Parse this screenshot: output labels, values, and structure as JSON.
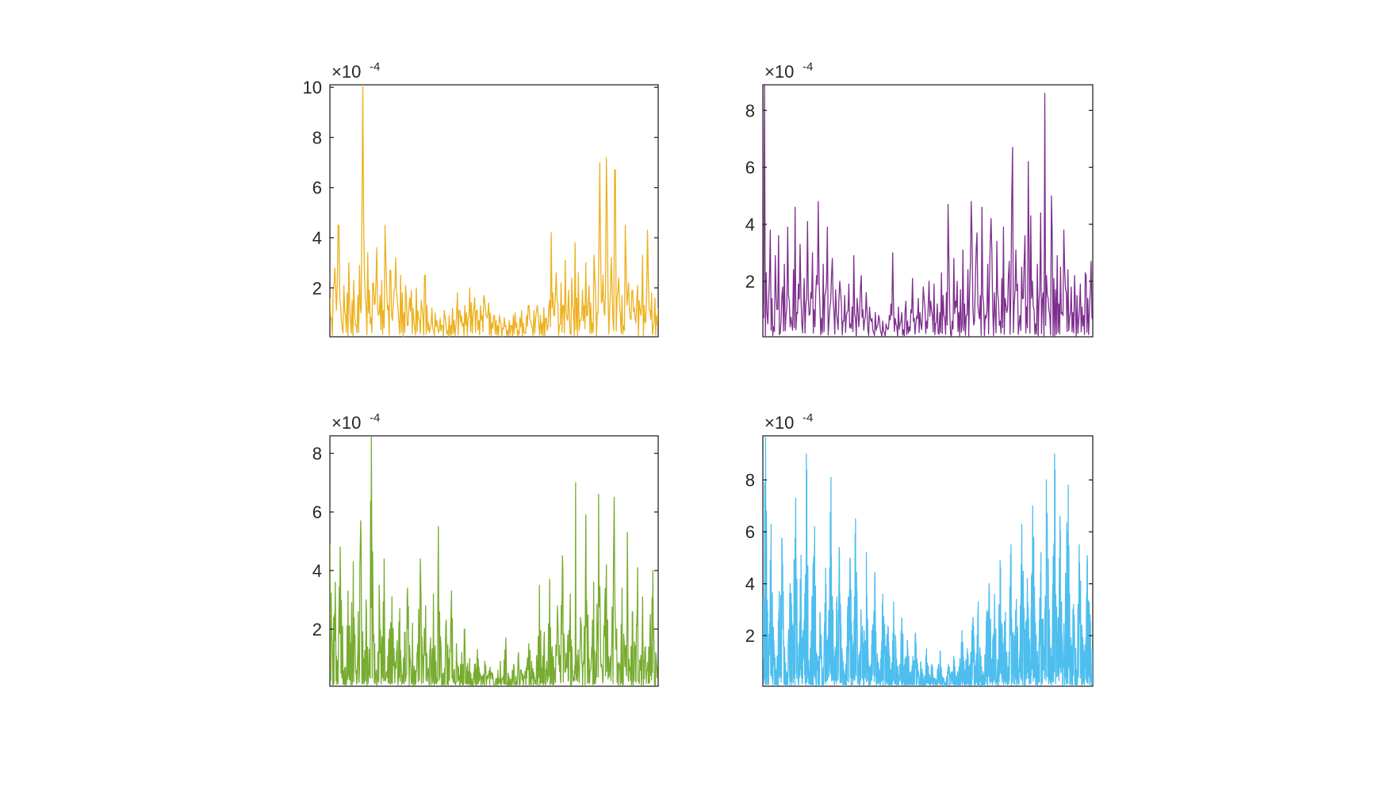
{
  "figure": {
    "background": "#ffffff",
    "axis_color": "#262626"
  },
  "chart_data": [
    {
      "type": "line",
      "title": "",
      "xlabel": "",
      "ylabel": "",
      "multiplier_base": "×10",
      "multiplier_exponent": "-4",
      "ylim": [
        0.05,
        10.1
      ],
      "yticks": [
        2,
        4,
        6,
        8,
        10
      ],
      "ytick_labels": [
        "2",
        "4",
        "6",
        "8",
        "10"
      ],
      "xticks_visible": false,
      "grid": false,
      "color": "#EDB120",
      "series": [
        {
          "x_count": 400,
          "values": [
            1.6,
            0.8,
            1.9,
            2.8,
            1.1,
            4.5,
            1.3,
            0.4,
            2.1,
            0.9,
            1.8,
            3.0,
            0.6,
            1.5,
            2.3,
            0.5,
            1.7,
            2.9,
            1.0,
            10.1,
            2.6,
            1.2,
            3.4,
            1.9,
            0.8,
            2.2,
            1.4,
            3.6,
            0.9,
            1.7,
            2.3,
            1.1,
            4.5,
            2.0,
            1.3,
            2.7,
            0.7,
            1.9,
            3.2,
            1.5,
            0.6,
            2.5,
            1.8,
            1.0,
            2.1,
            0.5,
            1.6,
            1.9,
            1.2,
            0.4,
            2.0,
            1.1,
            0.7,
            1.5,
            0.9,
            2.5,
            1.3,
            0.6,
            0.4,
            1.2,
            0.3,
            1.0,
            0.7,
            0.2,
            0.8,
            0.5,
            1.1,
            0.6,
            0.3,
            0.9,
            0.5,
            1.2,
            0.7,
            0.4,
            1.8,
            1.1,
            0.9,
            0.6,
            1.3,
            1.0,
            0.8,
            2.0,
            1.4,
            0.9,
            1.6,
            1.1,
            0.7,
            1.3,
            0.9,
            1.7,
            1.2,
            0.8,
            1.4,
            1.0,
            0.6,
            0.9,
            0.7,
            0.5,
            0.9,
            0.6,
            0.4,
            0.8,
            0.5,
            0.3,
            0.7,
            0.5,
            0.9,
            1.0,
            0.6,
            0.3,
            0.8,
            1.1,
            0.6,
            0.2,
            0.9,
            1.3,
            0.7,
            0.4,
            1.1,
            0.8,
            1.3,
            0.5,
            0.9,
            0.6,
            1.2,
            0.8,
            0.4,
            1.5,
            4.2,
            1.8,
            0.9,
            2.6,
            1.4,
            0.5,
            2.2,
            1.3,
            3.1,
            0.8,
            1.9,
            0.2,
            2.4,
            1.1,
            3.8,
            1.6,
            2.6,
            0.7,
            1.9,
            1.3,
            3.0,
            0.9,
            2.1,
            1.4,
            0.6,
            3.3,
            1.8,
            1.0,
            7.0,
            1.4,
            2.5,
            0.9,
            7.2,
            1.9,
            1.1,
            3.2,
            0.7,
            6.7,
            1.6,
            2.4,
            0.9,
            1.7,
            0.5,
            4.5,
            1.3,
            2.2,
            0.8,
            1.9,
            1.2,
            0.6,
            2.1,
            1.5,
            0.9,
            3.3,
            1.3,
            0.7,
            4.3,
            1.1,
            1.8,
            0.4,
            1.6,
            0.9,
            1.2
          ]
        }
      ]
    },
    {
      "type": "line",
      "title": "",
      "xlabel": "",
      "ylabel": "",
      "multiplier_base": "×10",
      "multiplier_exponent": "-4",
      "ylim": [
        0.05,
        8.9
      ],
      "yticks": [
        2,
        4,
        6,
        8
      ],
      "ytick_labels": [
        "2",
        "4",
        "6",
        "8"
      ],
      "xticks_visible": false,
      "grid": false,
      "color": "#7E2F8E",
      "series": [
        {
          "x_count": 400,
          "values": [
            1.2,
            8.9,
            2.3,
            0.5,
            3.8,
            1.4,
            0.4,
            2.9,
            1.0,
            3.6,
            0.6,
            1.8,
            2.6,
            0.8,
            3.9,
            1.3,
            0.5,
            2.4,
            4.6,
            0.9,
            1.9,
            3.3,
            0.6,
            2.1,
            1.2,
            4.1,
            0.8,
            1.6,
            3.0,
            0.4,
            2.2,
            4.8,
            1.1,
            0.7,
            2.6,
            1.5,
            3.9,
            0.6,
            1.3,
            2.8,
            0.9,
            1.7,
            0.3,
            2.0,
            1.2,
            0.6,
            1.5,
            0.8,
            1.9,
            0.5,
            1.1,
            2.9,
            0.7,
            1.4,
            0.4,
            2.2,
            1.0,
            0.6,
            1.6,
            0.3,
            1.1,
            0.7,
            0.2,
            0.9,
            0.4,
            0.8,
            0.3,
            0.6,
            0.2,
            0.5,
            0.3,
            0.8,
            1.2,
            3.0,
            0.7,
            0.4,
            1.1,
            0.5,
            0.9,
            0.3,
            1.3,
            0.6,
            0.4,
            1.0,
            2.1,
            0.7,
            0.5,
            1.4,
            0.9,
            0.3,
            1.8,
            1.1,
            0.6,
            2.0,
            1.3,
            0.8,
            1.9,
            0.5,
            1.2,
            0.9,
            2.3,
            1.5,
            0.7,
            1.6,
            4.7,
            1.0,
            0.6,
            2.8,
            1.3,
            2.0,
            0.9,
            1.7,
            3.1,
            1.2,
            0.8,
            2.4,
            1.6,
            4.8,
            1.1,
            2.0,
            3.7,
            0.9,
            1.5,
            4.6,
            1.2,
            0.7,
            2.6,
            1.9,
            4.2,
            1.0,
            1.6,
            3.4,
            1.3,
            0.6,
            2.1,
            3.9,
            1.4,
            0.9,
            2.7,
            1.6,
            6.7,
            1.2,
            3.1,
            1.9,
            0.8,
            2.5,
            1.4,
            3.6,
            1.1,
            6.2,
            4.3,
            2.0,
            1.0,
            0.5,
            2.6,
            1.3,
            4.4,
            1.6,
            8.6,
            2.2,
            1.4,
            0.8,
            5.0,
            2.1,
            1.7,
            2.9,
            1.2,
            2.5,
            0.9,
            3.8,
            1.6,
            2.4,
            0.7,
            1.8,
            0.9,
            2.2,
            1.5,
            0.6,
            1.9,
            1.1,
            0.8,
            2.3,
            1.4,
            1.0,
            2.7,
            0.6
          ]
        }
      ]
    },
    {
      "type": "line",
      "title": "",
      "xlabel": "",
      "ylabel": "",
      "multiplier_base": "×10",
      "multiplier_exponent": "-4",
      "ylim": [
        0.05,
        8.6
      ],
      "yticks": [
        2,
        4,
        6,
        8
      ],
      "ytick_labels": [
        "2",
        "4",
        "6",
        "8"
      ],
      "xticks_visible": false,
      "grid": false,
      "color": "#77AC30",
      "series": [
        {
          "x_count": 800,
          "values": [
            4.9,
            1.2,
            3.6,
            0.4,
            4.8,
            2.1,
            0.7,
            3.3,
            1.5,
            4.3,
            0.5,
            2.6,
            5.7,
            1.0,
            3.0,
            0.4,
            8.6,
            1.8,
            0.6,
            3.5,
            1.3,
            4.4,
            0.5,
            2.0,
            3.1,
            0.8,
            1.6,
            2.7,
            0.4,
            1.9,
            3.4,
            1.0,
            2.2,
            0.6,
            1.5,
            4.4,
            1.1,
            2.8,
            0.5,
            1.7,
            3.2,
            0.9,
            5.5,
            1.2,
            0.5,
            2.3,
            1.0,
            3.3,
            0.6,
            1.5,
            0.4,
            1.2,
            2.0,
            0.7,
            1.0,
            0.3,
            0.8,
            1.3,
            0.5,
            0.4,
            0.9,
            0.3,
            0.7,
            0.5,
            0.2,
            0.6,
            0.9,
            0.4,
            1.7,
            0.5,
            0.3,
            0.8,
            0.4,
            1.2,
            0.6,
            0.3,
            0.7,
            1.5,
            0.9,
            0.4,
            1.1,
            3.5,
            0.6,
            1.9,
            0.9,
            3.7,
            1.4,
            0.5,
            2.8,
            1.1,
            4.5,
            0.7,
            1.8,
            3.2,
            0.6,
            7.0,
            1.3,
            2.4,
            0.9,
            5.9,
            1.5,
            0.6,
            3.6,
            1.2,
            6.6,
            0.8,
            2.1,
            4.2,
            1.0,
            1.6,
            6.5,
            2.0,
            0.8,
            3.4,
            1.3,
            5.3,
            0.7,
            2.6,
            1.1,
            4.1,
            0.6,
            3.1,
            1.4,
            0.8,
            2.5,
            4.0,
            1.2,
            0.7
          ]
        }
      ]
    },
    {
      "type": "line",
      "title": "",
      "xlabel": "",
      "ylabel": "",
      "multiplier_base": "×10",
      "multiplier_exponent": "-4",
      "ylim": [
        0.05,
        9.7
      ],
      "yticks": [
        2,
        4,
        6,
        8
      ],
      "ytick_labels": [
        "2",
        "4",
        "6",
        "8"
      ],
      "xticks_visible": false,
      "grid": false,
      "color": "#4DBEEE",
      "series": [
        {
          "x_count": 1600,
          "values": [
            2.0,
            9.7,
            0.5,
            6.3,
            1.8,
            0.4,
            3.7,
            5.6,
            1.2,
            0.6,
            4.0,
            2.4,
            7.3,
            0.8,
            5.1,
            1.4,
            9.0,
            0.3,
            3.5,
            6.2,
            1.1,
            2.8,
            0.5,
            4.6,
            1.9,
            8.1,
            0.7,
            3.3,
            5.4,
            1.5,
            0.4,
            2.7,
            4.9,
            1.0,
            6.5,
            0.6,
            3.0,
            1.7,
            5.2,
            0.8,
            2.2,
            4.3,
            1.3,
            0.5,
            3.6,
            1.6,
            2.3,
            0.7,
            3.3,
            1.1,
            0.5,
            2.6,
            0.9,
            1.8,
            0.4,
            1.2,
            2.1,
            0.6,
            1.0,
            0.3,
            1.5,
            0.5,
            0.9,
            0.3,
            0.7,
            1.4,
            0.4,
            0.2,
            0.9,
            0.5,
            1.2,
            0.4,
            0.8,
            2.2,
            0.6,
            1.5,
            0.9,
            2.7,
            0.7,
            3.3,
            1.2,
            0.5,
            2.6,
            4.0,
            1.1,
            3.6,
            0.6,
            4.9,
            1.7,
            2.9,
            0.8,
            5.5,
            1.3,
            3.4,
            0.7,
            6.3,
            1.9,
            4.2,
            1.0,
            7.0,
            2.5,
            0.9,
            5.2,
            1.6,
            8.0,
            3.0,
            1.2,
            9.0,
            2.1,
            6.6,
            1.0,
            4.4,
            7.8,
            1.8,
            3.2,
            0.7,
            5.5,
            2.4,
            1.3,
            4.8,
            2.8,
            0.9
          ]
        }
      ]
    }
  ]
}
